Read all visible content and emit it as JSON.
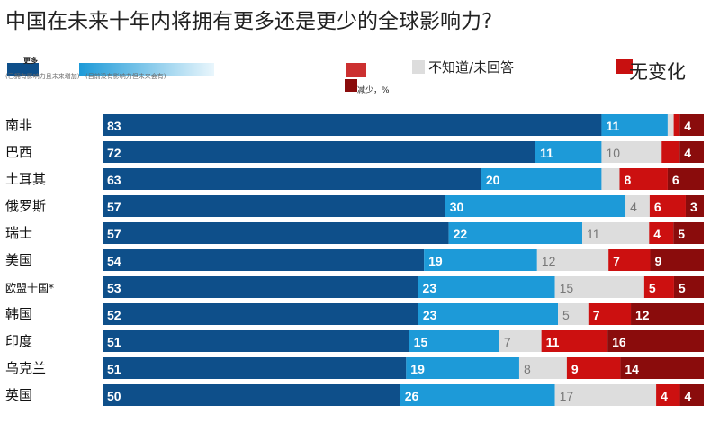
{
  "chart_data": {
    "type": "bar",
    "orientation": "horizontal",
    "stacked": true,
    "title": "中国在未来十年内将拥有更多还是更少的全球影响力?",
    "legend": {
      "more": "更多",
      "more_sub_1": "(已拥有影响力且未来增加)",
      "more_sub_2": "(目前没有影响力但未来会有)",
      "less": "减少，%",
      "dont_know": "不知道/未回答",
      "no_change": "无变化"
    },
    "categories": [
      "南非",
      "巴西",
      "土耳其",
      "俄罗斯",
      "瑞士",
      "美国",
      "欧盟十国*",
      "韩国",
      "印度",
      "乌克兰",
      "英国"
    ],
    "series": [
      {
        "key": "more_dark",
        "color": "#0e4f8a",
        "values": [
          83,
          72,
          63,
          57,
          57,
          54,
          53,
          52,
          51,
          51,
          50
        ],
        "labels": [
          83,
          72,
          63,
          57,
          57,
          54,
          53,
          52,
          51,
          51,
          50
        ]
      },
      {
        "key": "more_light",
        "color": "#1d9ad8",
        "values": [
          11,
          11,
          20,
          30,
          22,
          19,
          23,
          23,
          15,
          19,
          26
        ],
        "labels": [
          11,
          11,
          20,
          30,
          22,
          19,
          23,
          23,
          15,
          19,
          26
        ]
      },
      {
        "key": "dont_know",
        "color": "#dddddd",
        "values": [
          1,
          10,
          3,
          4,
          11,
          12,
          15,
          5,
          7,
          8,
          17
        ],
        "labels": [
          null,
          10,
          null,
          4,
          11,
          12,
          15,
          5,
          7,
          8,
          17
        ]
      },
      {
        "key": "red",
        "color": "#cc1010",
        "values": [
          1,
          3,
          8,
          6,
          4,
          7,
          5,
          7,
          11,
          9,
          4
        ],
        "labels": [
          null,
          null,
          8,
          6,
          4,
          7,
          5,
          7,
          11,
          9,
          4
        ]
      },
      {
        "key": "dark_red",
        "color": "#8a0c0c",
        "values": [
          4,
          4,
          6,
          3,
          5,
          9,
          5,
          12,
          16,
          14,
          4
        ],
        "labels": [
          4,
          4,
          6,
          3,
          5,
          9,
          5,
          12,
          16,
          14,
          4
        ]
      }
    ],
    "xlim": [
      0,
      100
    ],
    "grid": false
  }
}
